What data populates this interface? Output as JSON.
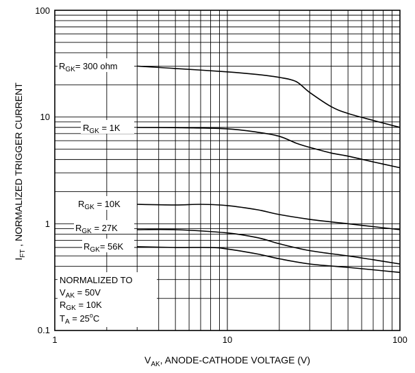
{
  "chart_data": {
    "type": "line",
    "x_scale": "log",
    "y_scale": "log",
    "xlim": [
      1,
      100
    ],
    "ylim": [
      0.1,
      100
    ],
    "grid": true,
    "x_ticks": [
      "1",
      "10",
      "100"
    ],
    "y_ticks": [
      "0.1",
      "1",
      "10",
      "100"
    ],
    "xlabel": {
      "main": "V",
      "sub": "AK",
      "rest": ", ANODE-CATHODE VOLTAGE (V)"
    },
    "ylabel": {
      "main": "I",
      "sub": "FT",
      "rest": " , NORMALIZED TRIGGER CURRENT"
    },
    "series": [
      {
        "label_main": "R",
        "label_sub": "GK",
        "label_rest": "= 300 ohm",
        "x": [
          3,
          5,
          10,
          15,
          20,
          25,
          30,
          40,
          50,
          70,
          100
        ],
        "y": [
          30,
          28.5,
          26.5,
          25,
          23.5,
          21.5,
          17,
          12.5,
          10.8,
          9.3,
          8
        ]
      },
      {
        "label_main": "R",
        "label_sub": "GK",
        "label_rest": " = 1K",
        "x": [
          3,
          5,
          10,
          15,
          20,
          25,
          30,
          40,
          50,
          70,
          100
        ],
        "y": [
          8,
          7.95,
          7.75,
          7.2,
          6.6,
          5.7,
          5.2,
          4.6,
          4.3,
          3.8,
          3.35
        ]
      },
      {
        "label_main": "R",
        "label_sub": "GK",
        "label_rest": " = 10K",
        "x": [
          3,
          5,
          7,
          10,
          15,
          20,
          30,
          50,
          70,
          100
        ],
        "y": [
          1.52,
          1.5,
          1.52,
          1.48,
          1.35,
          1.22,
          1.1,
          1.0,
          0.94,
          0.88
        ]
      },
      {
        "label_main": "R",
        "label_sub": "GK",
        "label_rest": " = 27K",
        "x": [
          3,
          5,
          10,
          15,
          20,
          30,
          50,
          70,
          100
        ],
        "y": [
          0.88,
          0.88,
          0.82,
          0.74,
          0.65,
          0.56,
          0.5,
          0.46,
          0.42
        ]
      },
      {
        "label_main": "R",
        "label_sub": "GK",
        "label_rest": "= 56K",
        "x": [
          3,
          5,
          8,
          10,
          15,
          20,
          30,
          50,
          70,
          100
        ],
        "y": [
          0.61,
          0.6,
          0.6,
          0.58,
          0.52,
          0.47,
          0.42,
          0.39,
          0.37,
          0.35
        ]
      }
    ],
    "note": {
      "line1": "NORMALIZED TO",
      "line2": {
        "main": "V",
        "sub": "AK",
        "rest": " = 50V"
      },
      "line3": {
        "main": "R",
        "sub": "GK",
        "rest": " = 10K"
      },
      "line4": {
        "main": "T",
        "sub": "A",
        "rest": " = 25",
        "sup": "o",
        "tail": "C"
      }
    }
  }
}
